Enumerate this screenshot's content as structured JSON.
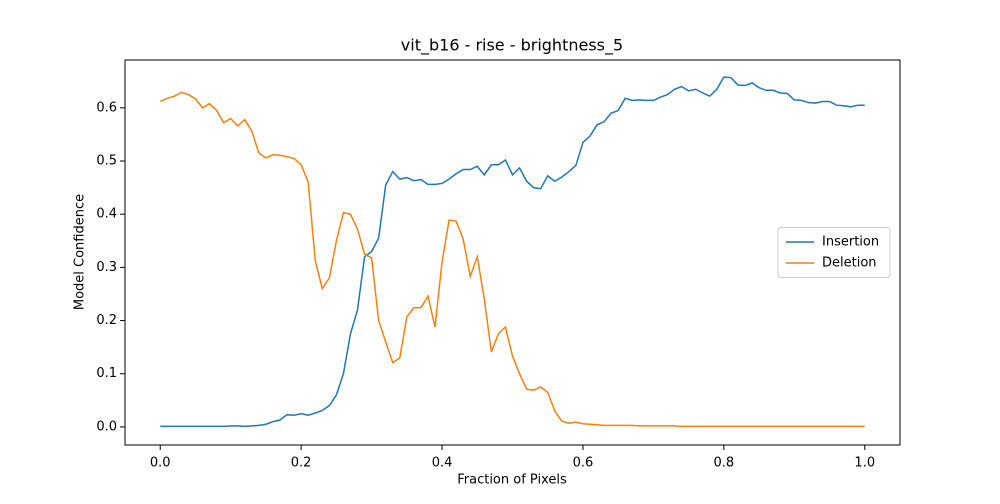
{
  "chart_data": {
    "type": "line",
    "title": "vit_b16 - rise - brightness_5",
    "x_label": "Fraction of Pixels",
    "y_label": "Model Confidence",
    "x": [
      0,
      0.01,
      0.02,
      0.03,
      0.04,
      0.05,
      0.06,
      0.07,
      0.08,
      0.09,
      0.1,
      0.11,
      0.12,
      0.13,
      0.14,
      0.15,
      0.16,
      0.17,
      0.18,
      0.19,
      0.2,
      0.21,
      0.22,
      0.23,
      0.24,
      0.25,
      0.26,
      0.27,
      0.28,
      0.29,
      0.3,
      0.31,
      0.32,
      0.33,
      0.34,
      0.35,
      0.36,
      0.37,
      0.38,
      0.39,
      0.4,
      0.41,
      0.42,
      0.43,
      0.44,
      0.45,
      0.46,
      0.47,
      0.48,
      0.49,
      0.5,
      0.51,
      0.52,
      0.53,
      0.54,
      0.55,
      0.56,
      0.57,
      0.58,
      0.59,
      0.6,
      0.61,
      0.62,
      0.63,
      0.64,
      0.65,
      0.66,
      0.67,
      0.68,
      0.69,
      0.7,
      0.71,
      0.72,
      0.73,
      0.74,
      0.75,
      0.76,
      0.77,
      0.78,
      0.79,
      0.8,
      0.81,
      0.82,
      0.83,
      0.84,
      0.85,
      0.86,
      0.87,
      0.88,
      0.89,
      0.9,
      0.91,
      0.92,
      0.93,
      0.94,
      0.95,
      0.96,
      0.97,
      0.98,
      0.99,
      1
    ],
    "series": [
      {
        "name": "Insertion",
        "color": "#1f77b4",
        "values": [
          0.001,
          0.001,
          0.001,
          0.001,
          0.001,
          0.001,
          0.001,
          0.001,
          0.001,
          0.001,
          0.002,
          0.002,
          0.001,
          0.002,
          0.003,
          0.005,
          0.01,
          0.013,
          0.023,
          0.022,
          0.025,
          0.022,
          0.026,
          0.031,
          0.04,
          0.06,
          0.1,
          0.175,
          0.22,
          0.32,
          0.33,
          0.355,
          0.455,
          0.48,
          0.466,
          0.469,
          0.463,
          0.465,
          0.456,
          0.456,
          0.458,
          0.466,
          0.476,
          0.484,
          0.484,
          0.49,
          0.474,
          0.493,
          0.493,
          0.502,
          0.474,
          0.487,
          0.462,
          0.45,
          0.448,
          0.472,
          0.462,
          0.47,
          0.48,
          0.492,
          0.535,
          0.547,
          0.568,
          0.574,
          0.59,
          0.595,
          0.618,
          0.614,
          0.615,
          0.614,
          0.614,
          0.62,
          0.625,
          0.635,
          0.64,
          0.632,
          0.635,
          0.628,
          0.622,
          0.635,
          0.658,
          0.657,
          0.643,
          0.642,
          0.647,
          0.638,
          0.633,
          0.633,
          0.628,
          0.627,
          0.615,
          0.614,
          0.61,
          0.609,
          0.612,
          0.612,
          0.605,
          0.604,
          0.602,
          0.605,
          0.605
        ]
      },
      {
        "name": "Deletion",
        "color": "#ff7f0e",
        "values": [
          0.612,
          0.618,
          0.622,
          0.629,
          0.625,
          0.617,
          0.6,
          0.608,
          0.595,
          0.572,
          0.58,
          0.566,
          0.578,
          0.556,
          0.515,
          0.506,
          0.512,
          0.511,
          0.508,
          0.505,
          0.493,
          0.46,
          0.313,
          0.26,
          0.28,
          0.35,
          0.403,
          0.4,
          0.372,
          0.325,
          0.318,
          0.2,
          0.16,
          0.121,
          0.13,
          0.207,
          0.224,
          0.224,
          0.246,
          0.188,
          0.31,
          0.389,
          0.387,
          0.353,
          0.283,
          0.32,
          0.24,
          0.141,
          0.175,
          0.188,
          0.133,
          0.1,
          0.071,
          0.069,
          0.075,
          0.065,
          0.03,
          0.011,
          0.007,
          0.009,
          0.006,
          0.005,
          0.004,
          0.003,
          0.003,
          0.003,
          0.003,
          0.003,
          0.002,
          0.002,
          0.002,
          0.002,
          0.002,
          0.002,
          0.001,
          0.001,
          0.001,
          0.001,
          0.001,
          0.001,
          0.001,
          0.001,
          0.001,
          0.001,
          0.001,
          0.001,
          0.001,
          0.001,
          0.001,
          0.001,
          0.001,
          0.001,
          0.001,
          0.001,
          0.001,
          0.001,
          0.001,
          0.001,
          0.001,
          0.001,
          0.001
        ]
      }
    ],
    "xlim": [
      -0.05,
      1.05
    ],
    "ylim": [
      -0.034,
      0.69
    ],
    "xticks": [
      {
        "value": 0,
        "label": "0.0"
      },
      0.2,
      0.4,
      0.6,
      0.8,
      {
        "value": 1,
        "label": "1.0"
      }
    ],
    "yticks": [
      {
        "value": 0,
        "label": "0.0"
      },
      0.1,
      0.2,
      0.3,
      0.4,
      0.5,
      0.6
    ],
    "legend": "center right"
  }
}
